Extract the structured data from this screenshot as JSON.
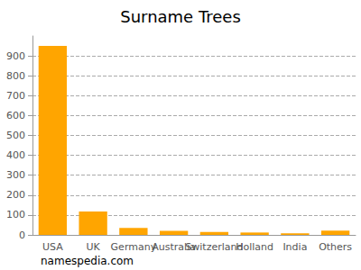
{
  "chart_data": {
    "type": "bar",
    "title": "Surname Trees",
    "categories": [
      "USA",
      "UK",
      "Germany",
      "Australia",
      "Switzerland",
      "Holland",
      "India",
      "Others"
    ],
    "values": [
      950,
      118,
      35,
      20,
      15,
      12,
      8,
      22
    ],
    "color": "#ffa500",
    "ylim": [
      0,
      1000
    ],
    "yticks": [
      0,
      100,
      200,
      300,
      400,
      500,
      600,
      700,
      800,
      900
    ],
    "grid": true,
    "annotation": "namespedia.com"
  }
}
